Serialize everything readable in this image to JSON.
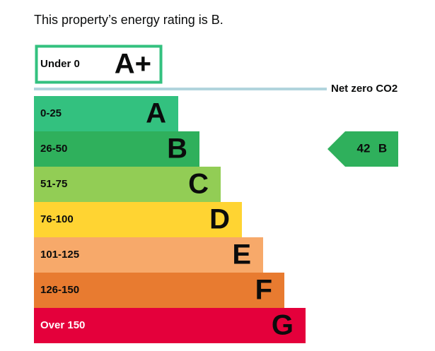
{
  "intro": "This property’s energy rating is B.",
  "top_band": {
    "range": "Under 0",
    "letter": "A+",
    "color": "#33c17f"
  },
  "net_zero": {
    "label": "Net zero CO2",
    "color": "#b1d4dd"
  },
  "bands": [
    {
      "range": "0-25",
      "letter": "A",
      "color": "#33c17f"
    },
    {
      "range": "26-50",
      "letter": "B",
      "color": "#2fb05c"
    },
    {
      "range": "51-75",
      "letter": "C",
      "color": "#92cd55"
    },
    {
      "range": "76-100",
      "letter": "D",
      "color": "#ffd432"
    },
    {
      "range": "101-125",
      "letter": "E",
      "color": "#f7a96a"
    },
    {
      "range": "126-150",
      "letter": "F",
      "color": "#e87b30"
    },
    {
      "range": "Over 150",
      "letter": "G",
      "color": "#e4003b"
    }
  ],
  "current": {
    "value": "42",
    "letter": "B"
  }
}
